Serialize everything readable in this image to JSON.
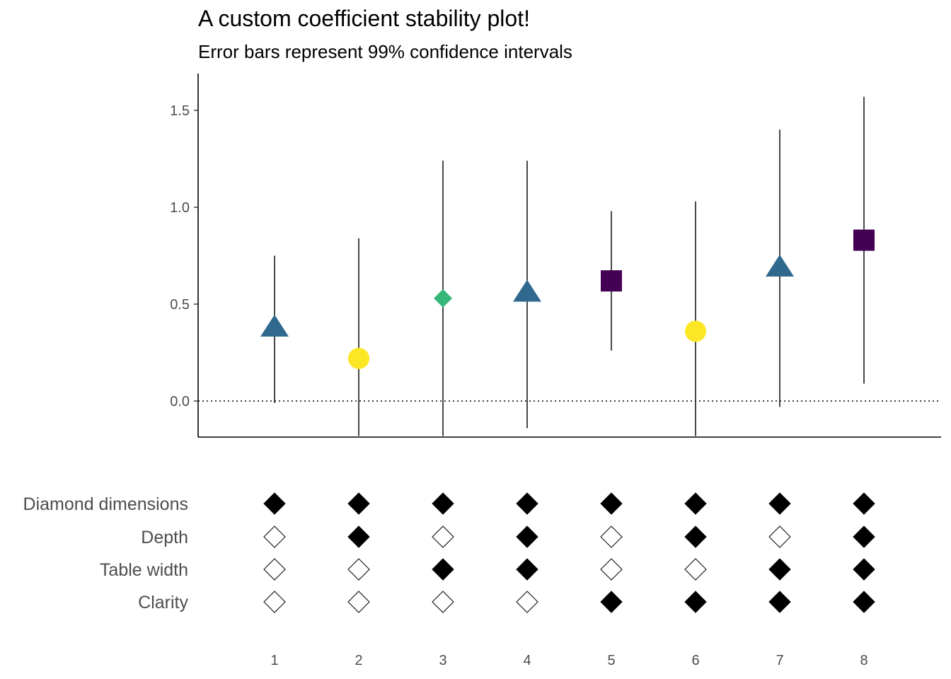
{
  "chart_data": {
    "type": "scatter",
    "title": "A custom coefficient stability plot!",
    "subtitle": "Error bars represent 99% confidence intervals",
    "xlabel": "",
    "ylabel": "",
    "y_ticks": [
      "0.0",
      "0.5",
      "1.0",
      "1.5"
    ],
    "y_tick_values": [
      0.0,
      0.5,
      1.0,
      1.5
    ],
    "ylim": [
      -0.18,
      1.68
    ],
    "reference_line": 0.0,
    "x_tick_labels": [
      "1",
      "2",
      "3",
      "4",
      "5",
      "6",
      "7",
      "8"
    ],
    "specs": [
      {
        "model": 1,
        "estimate": 0.38,
        "lower": -0.01,
        "upper": 0.75,
        "shape": "triangle",
        "color": "#31688E"
      },
      {
        "model": 2,
        "estimate": 0.22,
        "lower": -0.18,
        "upper": 0.84,
        "shape": "circle",
        "color": "#FDE725"
      },
      {
        "model": 3,
        "estimate": 0.53,
        "lower": -0.18,
        "upper": 1.24,
        "shape": "diamond",
        "color": "#35B779"
      },
      {
        "model": 4,
        "estimate": 0.56,
        "lower": -0.14,
        "upper": 1.24,
        "shape": "triangle",
        "color": "#31688E"
      },
      {
        "model": 5,
        "estimate": 0.62,
        "lower": 0.26,
        "upper": 0.98,
        "shape": "square",
        "color": "#440154"
      },
      {
        "model": 6,
        "estimate": 0.36,
        "lower": -0.18,
        "upper": 1.03,
        "shape": "circle",
        "color": "#FDE725"
      },
      {
        "model": 7,
        "estimate": 0.69,
        "lower": -0.03,
        "upper": 1.4,
        "shape": "triangle",
        "color": "#31688E"
      },
      {
        "model": 8,
        "estimate": 0.83,
        "lower": 0.09,
        "upper": 1.57,
        "shape": "square",
        "color": "#440154"
      }
    ],
    "indicator_rows": [
      {
        "label": "Diamond dimensions",
        "included": [
          true,
          true,
          true,
          true,
          true,
          true,
          true,
          true
        ]
      },
      {
        "label": "Depth",
        "included": [
          false,
          true,
          false,
          true,
          false,
          true,
          false,
          true
        ]
      },
      {
        "label": "Table width",
        "included": [
          false,
          false,
          true,
          true,
          false,
          false,
          true,
          true
        ]
      },
      {
        "label": "Clarity",
        "included": [
          false,
          false,
          false,
          false,
          true,
          true,
          true,
          true
        ]
      }
    ]
  }
}
